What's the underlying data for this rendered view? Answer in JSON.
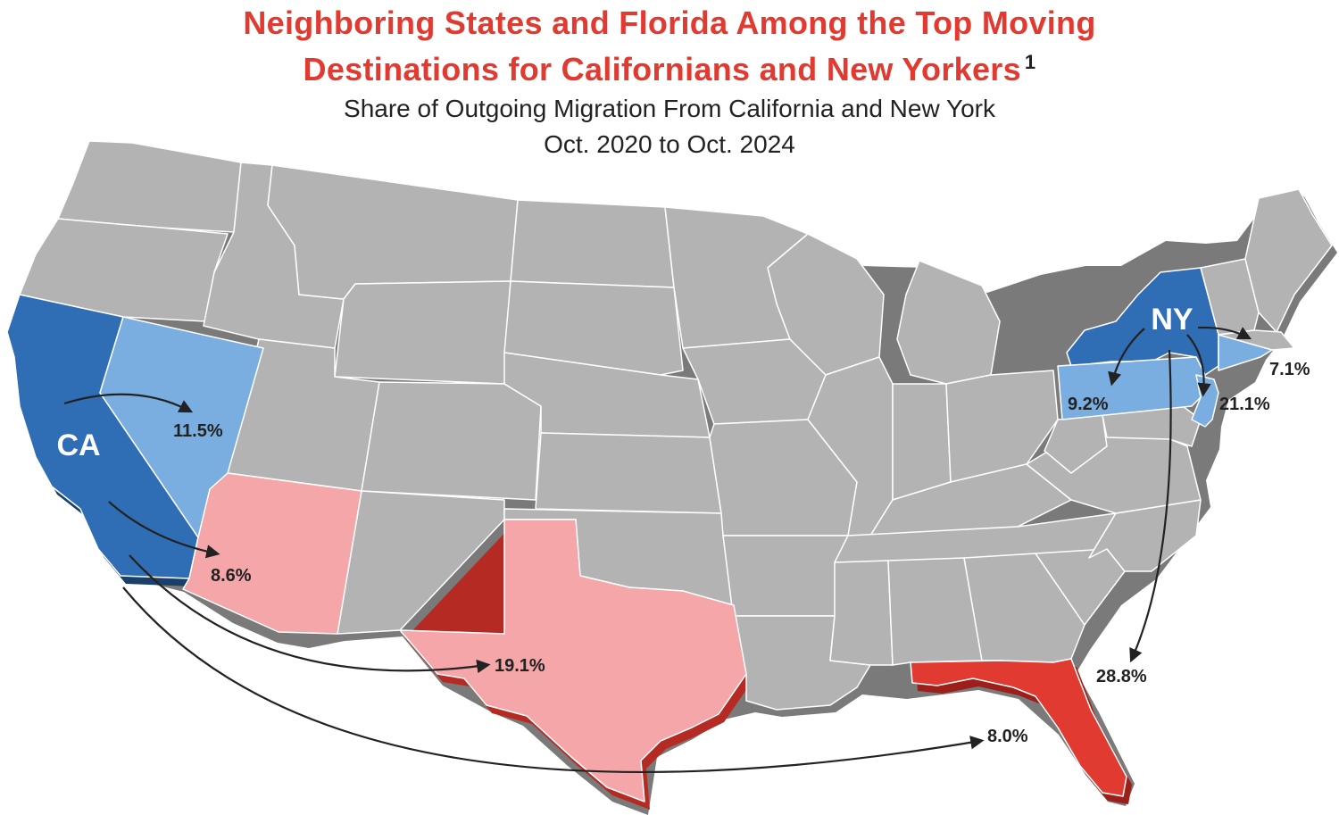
{
  "title": {
    "line1": "Neighboring States and Florida Among the Top Moving",
    "line2": "Destinations for Californians and New Yorkers",
    "footnote": "1"
  },
  "subtitle": {
    "line1": "Share of Outgoing Migration From California and New York",
    "line2": "Oct. 2020 to Oct. 2024"
  },
  "origins": {
    "ca": "CA",
    "ny": "NY"
  },
  "flows": {
    "ca_nv": "11.5%",
    "ca_az": "8.6%",
    "ca_tx": "19.1%",
    "ca_fl": "8.0%",
    "ny_pa": "9.2%",
    "ny_nj": "21.1%",
    "ny_ct": "7.1%",
    "ny_fl": "28.8%"
  },
  "colors": {
    "origin_state": "#2f6db5",
    "origin_edge": "#1a3f6b",
    "ny_destination": "#7aaee0",
    "ca_destination": "#f4a6a9",
    "shared_destination": "#e03a31",
    "shared_edge": "#9c1f1a",
    "other_state": "#b3b3b3",
    "other_edge": "#7a7a7a",
    "border": "#ffffff",
    "arrow": "#222222",
    "title": "#e03a31",
    "text": "#222222"
  }
}
